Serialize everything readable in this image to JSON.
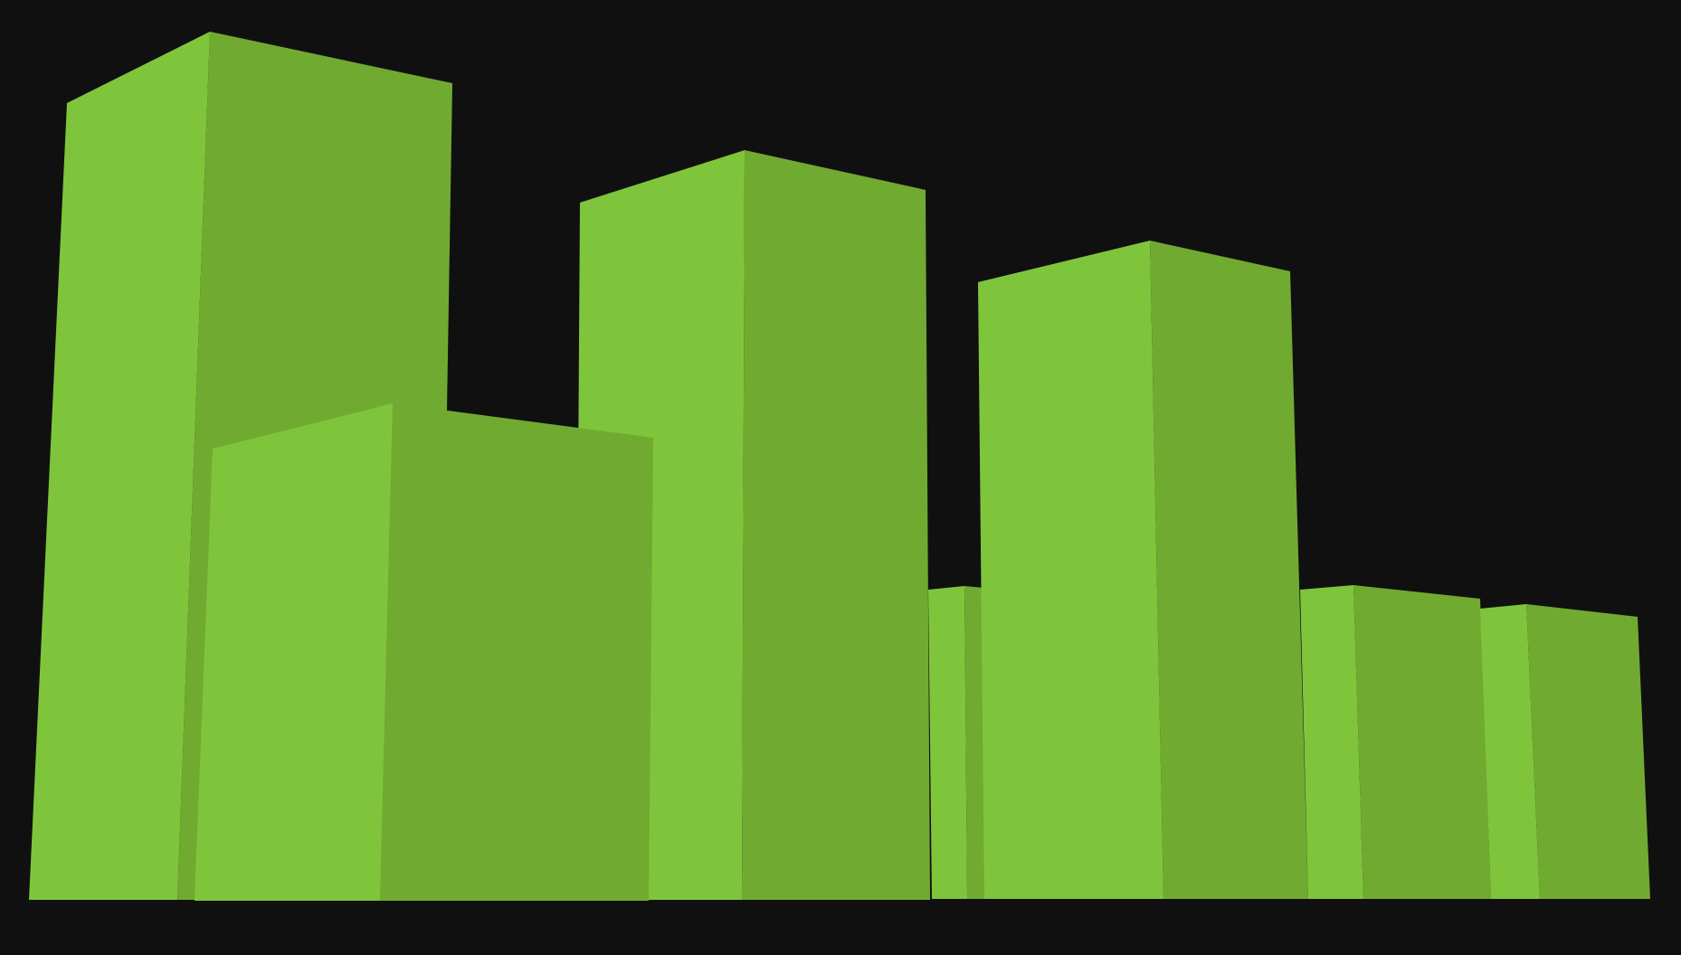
{
  "scene": {
    "background_color": "#101011",
    "light_face_color": "#7fc53c",
    "dark_face_color": "#71aa31",
    "block_count": 7
  }
}
